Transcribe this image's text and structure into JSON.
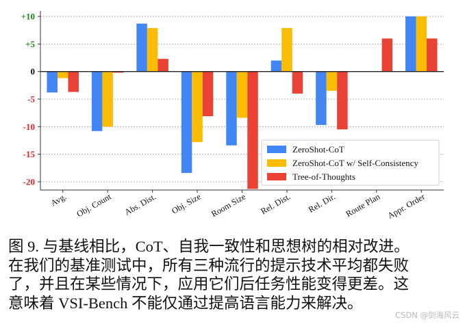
{
  "chart_data": {
    "type": "bar",
    "categories": [
      "Avg.",
      "Obj. Count",
      "Abs. Dist.",
      "Obj. Size",
      "Room Size",
      "Rel. Dist.",
      "Rel. Dir.",
      "Route Plan",
      "Appr. Order"
    ],
    "series": [
      {
        "name": "ZeroShot-CoT",
        "color": "#4285f4",
        "values": [
          -3.8,
          -10.8,
          8.7,
          -18.4,
          -13.4,
          2.0,
          -9.7,
          0,
          10.0
        ]
      },
      {
        "name": "ZeroShot-CoT w/ Self-Consistency",
        "color": "#fbbc04",
        "values": [
          -1.2,
          -10.0,
          7.9,
          -12.8,
          -8.4,
          7.9,
          -3.5,
          0,
          10.0
        ]
      },
      {
        "name": "Tree-of-Thoughts",
        "color": "#ea4335",
        "values": [
          -3.7,
          -0.2,
          2.3,
          -8.1,
          -21.3,
          -4.0,
          -10.5,
          6.0,
          6.0
        ]
      }
    ],
    "yticks": [
      {
        "value": 10,
        "label": "+10",
        "color": "#1a8a1a"
      },
      {
        "value": 5,
        "label": "+5",
        "color": "#1a8a1a"
      },
      {
        "value": 0,
        "label": "0",
        "color": "#111111"
      },
      {
        "value": -5,
        "label": "-5",
        "color": "#d62728"
      },
      {
        "value": -10,
        "label": "-10",
        "color": "#d62728"
      },
      {
        "value": -15,
        "label": "-15",
        "color": "#d62728"
      },
      {
        "value": -20,
        "label": "-20",
        "color": "#d62728"
      }
    ],
    "ylim": [
      -21.5,
      11
    ],
    "grid": true,
    "legend_position": "bottom-right"
  },
  "caption": {
    "lines": [
      "图 9. 与基线相比，CoT、自我一致性和思想树的相对改进。",
      "在我们的基准测试中，所有三种流行的提示技术平均都失败",
      "了，并且在某些情况下，应用它们后任务性能变得更差。这",
      "意味着 VSI-Bench 不能仅通过提高语言能力来解决。"
    ]
  },
  "watermark": "CSDN @剑海风云"
}
